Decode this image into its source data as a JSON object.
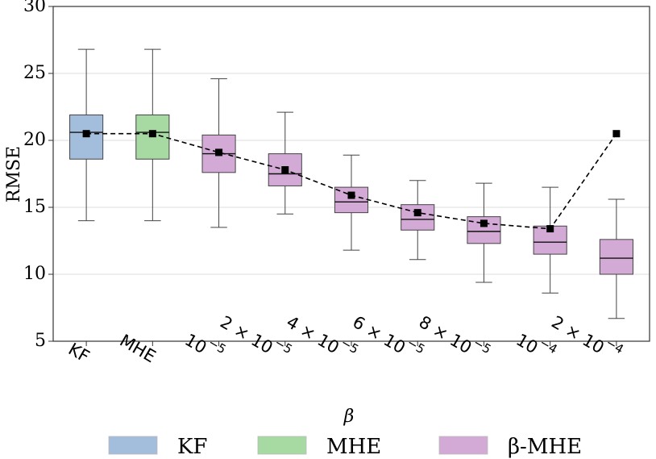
{
  "chart_data": {
    "type": "box",
    "title": "",
    "xlabel": "β",
    "ylabel": "RMSE",
    "ylim": [
      5,
      30
    ],
    "yticks": [
      5,
      10,
      15,
      20,
      25,
      30
    ],
    "grid": "horizontal",
    "categories": [
      {
        "base": "KF",
        "sup": ""
      },
      {
        "base": "MHE",
        "sup": ""
      },
      {
        "base": "10",
        "sup": "−5"
      },
      {
        "base": "2 × 10",
        "sup": "−5"
      },
      {
        "base": "4 × 10",
        "sup": "−5"
      },
      {
        "base": "6 × 10",
        "sup": "−5"
      },
      {
        "base": "8 × 10",
        "sup": "−5"
      },
      {
        "base": "10",
        "sup": "−4"
      },
      {
        "base": "2 × 10",
        "sup": "−4"
      }
    ],
    "boxes": [
      {
        "group": "KF",
        "whisker_low": 14.0,
        "q1": 18.6,
        "median": 20.6,
        "q3": 21.9,
        "whisker_high": 26.8
      },
      {
        "group": "MHE",
        "whisker_low": 14.0,
        "q1": 18.6,
        "median": 20.6,
        "q3": 21.9,
        "whisker_high": 26.8
      },
      {
        "group": "β-MHE",
        "whisker_low": 13.5,
        "q1": 17.6,
        "median": 19.0,
        "q3": 20.4,
        "whisker_high": 24.6
      },
      {
        "group": "β-MHE",
        "whisker_low": 14.5,
        "q1": 16.6,
        "median": 17.5,
        "q3": 19.0,
        "whisker_high": 22.1
      },
      {
        "group": "β-MHE",
        "whisker_low": 11.8,
        "q1": 14.6,
        "median": 15.4,
        "q3": 16.5,
        "whisker_high": 18.9
      },
      {
        "group": "β-MHE",
        "whisker_low": 11.1,
        "q1": 13.3,
        "median": 14.1,
        "q3": 15.2,
        "whisker_high": 17.0
      },
      {
        "group": "β-MHE",
        "whisker_low": 9.4,
        "q1": 12.3,
        "median": 13.2,
        "q3": 14.3,
        "whisker_high": 16.8
      },
      {
        "group": "β-MHE",
        "whisker_low": 8.6,
        "q1": 11.5,
        "median": 12.4,
        "q3": 13.6,
        "whisker_high": 16.5
      },
      {
        "group": "β-MHE",
        "whisker_low": 6.7,
        "q1": 10.0,
        "median": 11.2,
        "q3": 12.6,
        "whisker_high": 15.6
      }
    ],
    "mean_markers": [
      20.5,
      20.5,
      19.1,
      17.8,
      15.9,
      14.6,
      13.8,
      13.4,
      20.5
    ],
    "mean_line_style": "dashed",
    "legend": [
      {
        "label": "KF",
        "color": "#a2bedc"
      },
      {
        "label": "MHE",
        "color": "#a7d9a2"
      },
      {
        "label": "β-MHE",
        "color": "#d3a9d6"
      }
    ],
    "legend_placement": "bottom"
  },
  "colors": {
    "KF": "#a2bedc",
    "MHE": "#a7d9a2",
    "β-MHE": "#d3a9d6",
    "grid": "#dddddd",
    "edge": "#444444"
  }
}
